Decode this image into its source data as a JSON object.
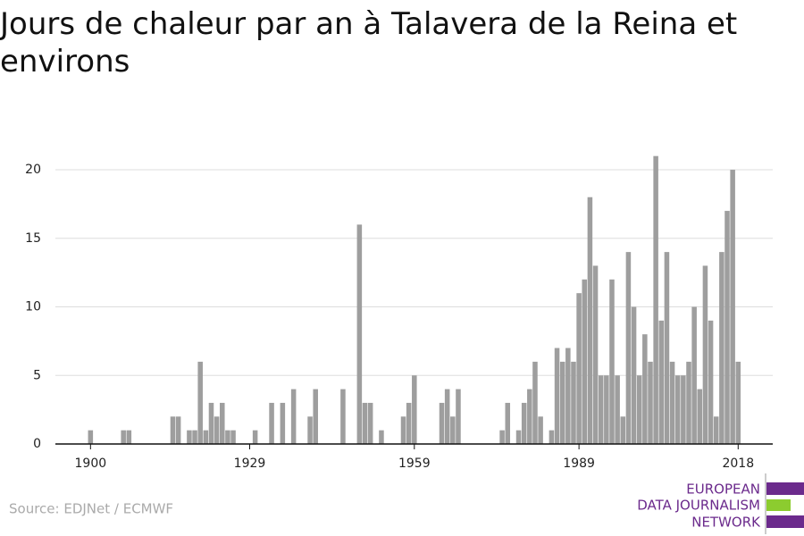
{
  "chart_data": {
    "type": "bar",
    "title": "Jours de chaleur par an à Talavera de la Reina et environs",
    "source": "Source: EDJNet / ECMWF",
    "logo": [
      "EUROPEAN",
      "DATA JOURNALISM",
      "NETWORK"
    ],
    "color": "#9e9e9e",
    "grid": true,
    "x": [
      1900,
      1901,
      1902,
      1903,
      1904,
      1905,
      1906,
      1907,
      1908,
      1909,
      1910,
      1911,
      1912,
      1913,
      1914,
      1915,
      1916,
      1917,
      1918,
      1919,
      1920,
      1921,
      1922,
      1923,
      1924,
      1925,
      1926,
      1927,
      1928,
      1929,
      1930,
      1931,
      1932,
      1933,
      1934,
      1935,
      1936,
      1937,
      1938,
      1939,
      1940,
      1941,
      1942,
      1943,
      1944,
      1945,
      1946,
      1947,
      1948,
      1949,
      1950,
      1951,
      1952,
      1953,
      1954,
      1955,
      1956,
      1957,
      1958,
      1959,
      1960,
      1961,
      1962,
      1963,
      1964,
      1965,
      1966,
      1967,
      1968,
      1969,
      1970,
      1971,
      1972,
      1973,
      1974,
      1975,
      1976,
      1977,
      1978,
      1979,
      1980,
      1981,
      1982,
      1983,
      1984,
      1985,
      1986,
      1987,
      1988,
      1989,
      1990,
      1991,
      1992,
      1993,
      1994,
      1995,
      1996,
      1997,
      1998,
      1999,
      2000,
      2001,
      2002,
      2003,
      2004,
      2005,
      2006,
      2007,
      2008,
      2009,
      2010,
      2011,
      2012,
      2013,
      2014,
      2015,
      2016,
      2017,
      2018
    ],
    "values": [
      1,
      0,
      0,
      0,
      0,
      0,
      1,
      1,
      0,
      0,
      0,
      0,
      0,
      0,
      0,
      2,
      2,
      0,
      1,
      1,
      6,
      1,
      3,
      2,
      3,
      1,
      1,
      0,
      0,
      0,
      1,
      0,
      0,
      3,
      0,
      3,
      0,
      4,
      0,
      0,
      2,
      4,
      0,
      0,
      0,
      0,
      4,
      0,
      0,
      16,
      3,
      3,
      0,
      1,
      0,
      0,
      0,
      2,
      3,
      5,
      0,
      0,
      0,
      0,
      3,
      4,
      2,
      4,
      0,
      0,
      0,
      0,
      0,
      0,
      0,
      1,
      3,
      0,
      1,
      3,
      4,
      6,
      2,
      0,
      1,
      7,
      6,
      7,
      6,
      11,
      12,
      18,
      13,
      5,
      5,
      12,
      5,
      2,
      14,
      10,
      5,
      8,
      6,
      21,
      9,
      14,
      6,
      5,
      5,
      6,
      10,
      4,
      13,
      9,
      2,
      14,
      17,
      20,
      6
    ],
    "xlim": [
      1893.6,
      2024.3
    ],
    "xticks": [
      1900,
      1929,
      1959,
      1989,
      2018
    ],
    "ylim": [
      0,
      21.5
    ],
    "yticks": [
      0,
      5,
      10,
      15,
      20
    ]
  }
}
